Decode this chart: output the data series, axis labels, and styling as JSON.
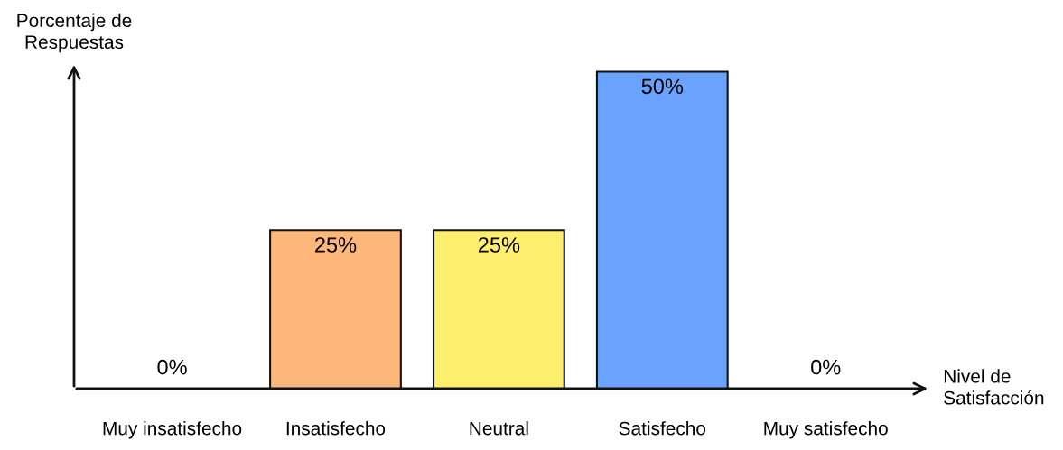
{
  "chart_data": {
    "type": "bar",
    "xlabel": "Nivel de\nSatisfacción",
    "ylabel": "Porcentaje de\nRespuestas",
    "categories": [
      "Muy insatisfecho",
      "Insatisfecho",
      "Neutral",
      "Satisfecho",
      "Muy satisfecho"
    ],
    "values": [
      0,
      25,
      25,
      50,
      0
    ],
    "colors": [
      "#fdb77a",
      "#fdb77a",
      "#fdee6e",
      "#69a3fd",
      "#69a3fd"
    ],
    "value_labels": [
      "0%",
      "25%",
      "25%",
      "50%",
      "0%"
    ],
    "grid": false,
    "legend": false
  }
}
